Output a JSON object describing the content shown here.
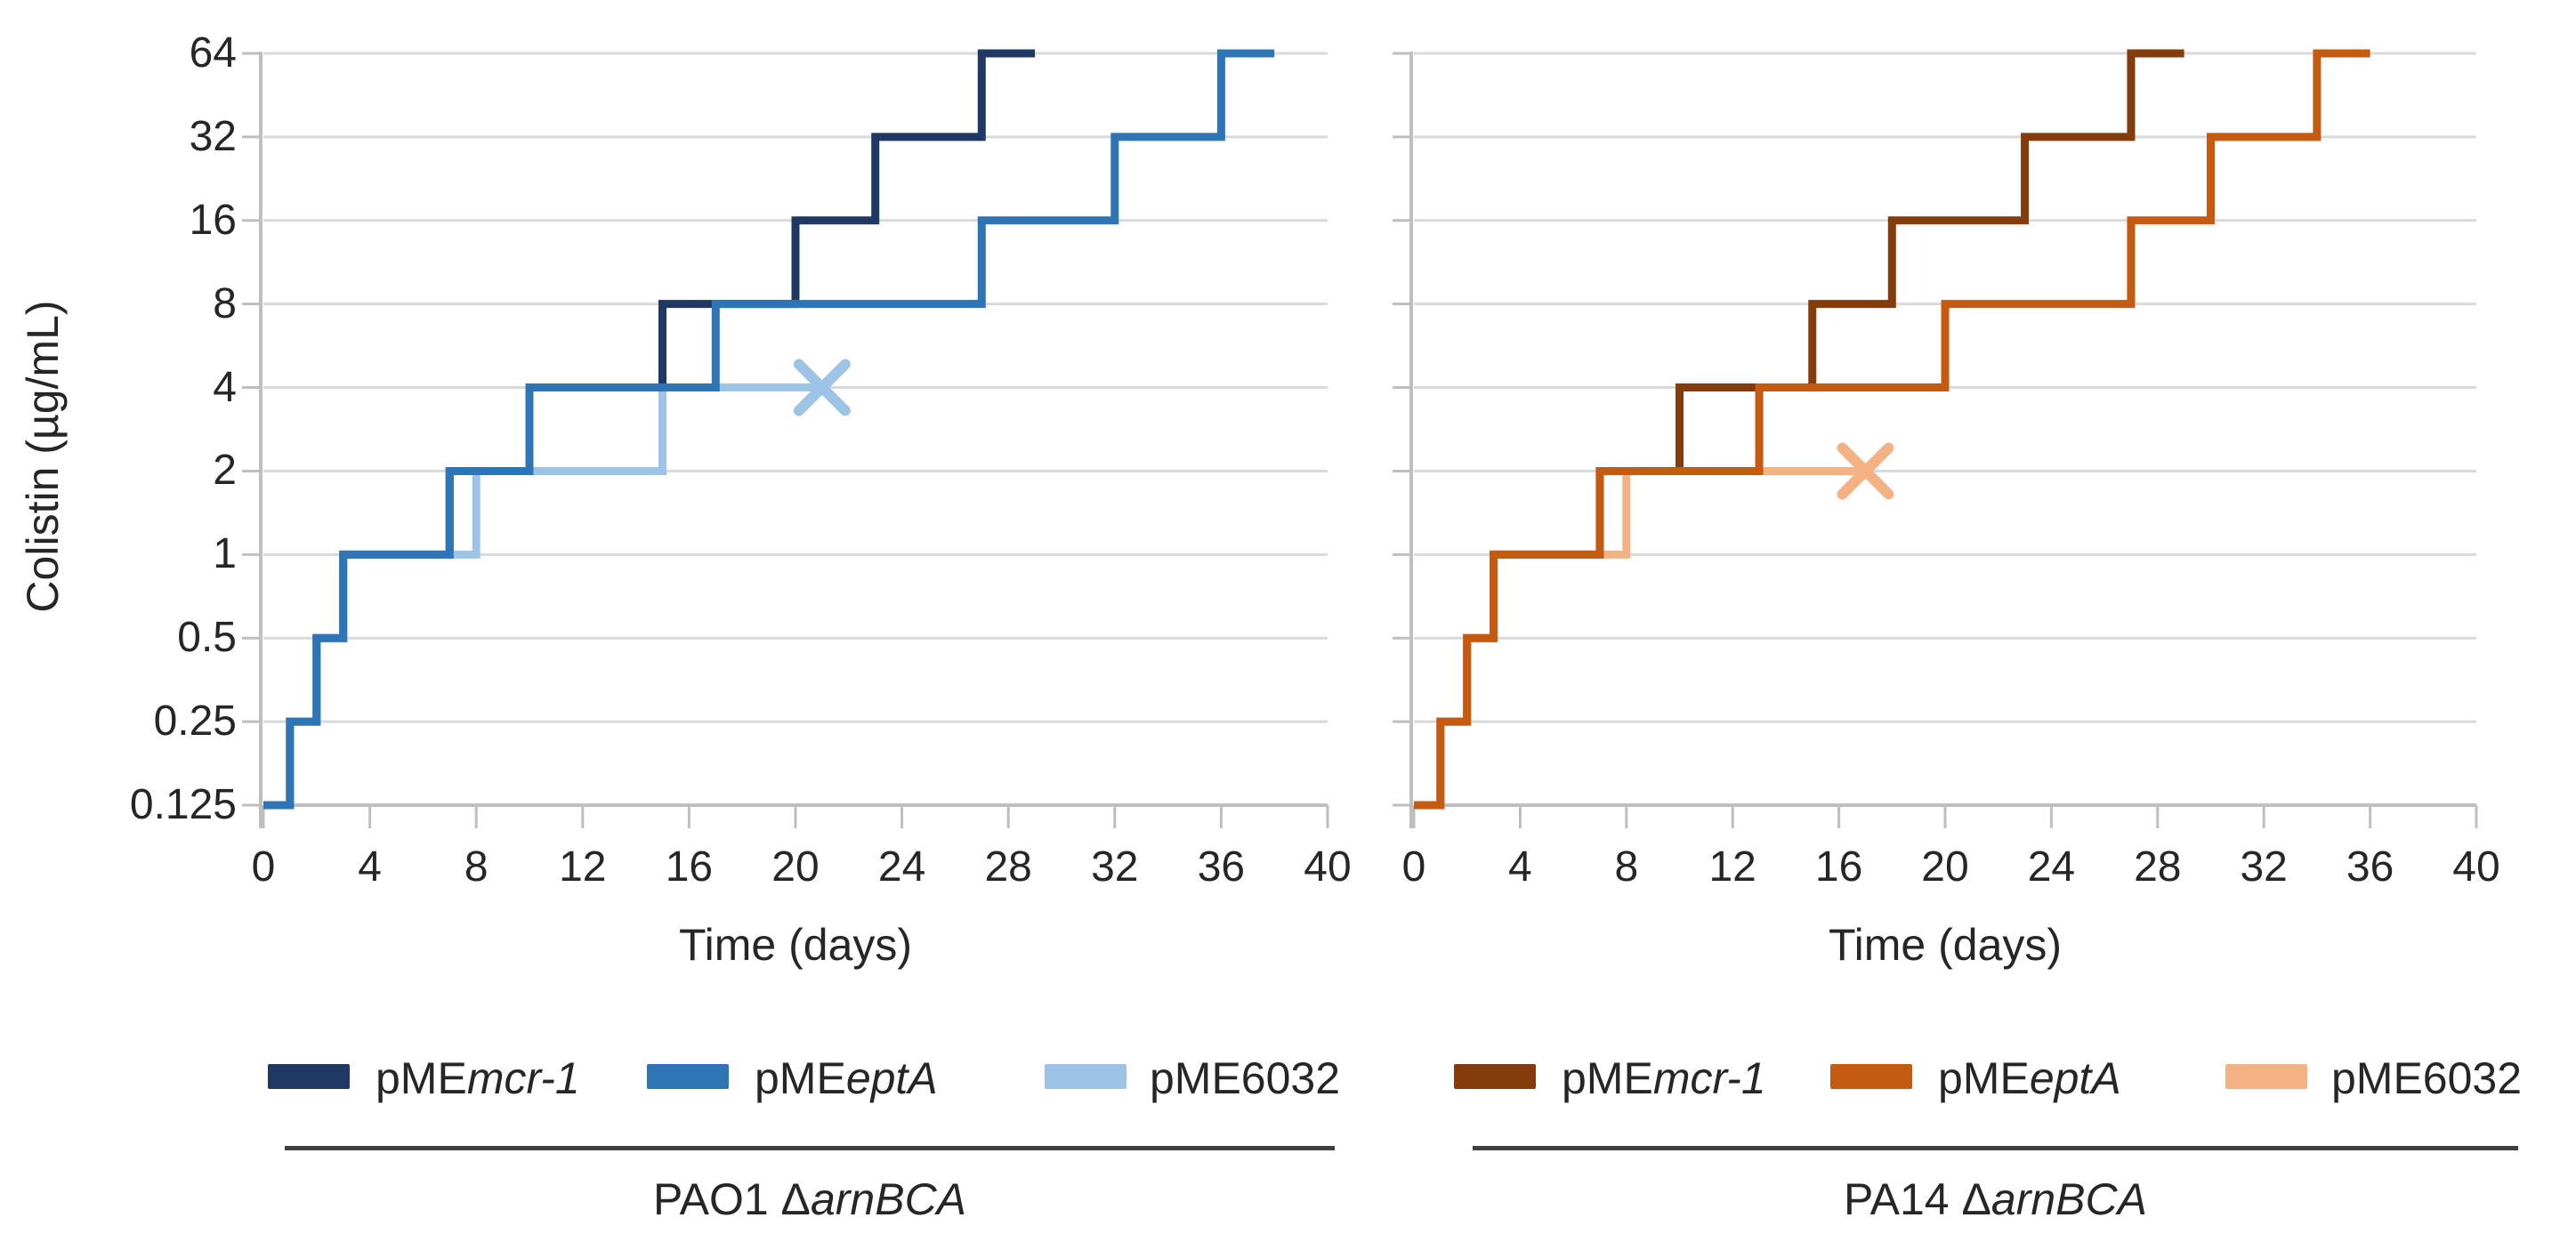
{
  "figure": {
    "y_axis_title": "Colistin (µg/mL)",
    "x_axis_title": "Time (days)",
    "grid_color": "#D9D9D9",
    "axis_color": "#BFBFBF",
    "text_color": "#262626",
    "underline_color": "#404040"
  },
  "legend": {
    "left": [
      {
        "prefix": "pME",
        "italic": "mcr-1",
        "color": "#1F3864"
      },
      {
        "prefix": "pME",
        "italic": "eptA",
        "color": "#2E75B6"
      },
      {
        "prefix": "pME6032",
        "italic": "",
        "color": "#9DC3E6"
      }
    ],
    "right": [
      {
        "prefix": "pME",
        "italic": "mcr-1",
        "color": "#843C0C"
      },
      {
        "prefix": "pME",
        "italic": "eptA",
        "color": "#C55A11"
      },
      {
        "prefix": "pME6032",
        "italic": "",
        "color": "#F4B183"
      }
    ]
  },
  "groups": {
    "left": {
      "prefix": "PAO1 Δ",
      "italic": "arnBCA"
    },
    "right": {
      "prefix": "PA14 Δ",
      "italic": "arnBCA"
    }
  },
  "chart_data": [
    {
      "type": "line",
      "subtype": "step",
      "title": "PAO1 ΔarnBCA",
      "xlabel": "Time (days)",
      "ylabel": "Colistin (µg/mL)",
      "x_ticks": [
        0,
        4,
        8,
        12,
        16,
        20,
        24,
        28,
        32,
        36,
        40
      ],
      "y_ticks": [
        64,
        32,
        16,
        8,
        4,
        2,
        1,
        0.5,
        0.25,
        0.125
      ],
      "xlim": [
        0,
        40
      ],
      "ylim": [
        0.125,
        64
      ],
      "y_scale": "log2",
      "grid": true,
      "legend_position": "bottom",
      "series": [
        {
          "name": "pMEmcr-1",
          "color": "#1F3864",
          "points": [
            [
              0,
              0.125
            ],
            [
              1,
              0.25
            ],
            [
              2,
              0.5
            ],
            [
              3,
              1
            ],
            [
              7,
              2
            ],
            [
              10,
              4
            ],
            [
              15,
              8
            ],
            [
              20,
              16
            ],
            [
              23,
              32
            ],
            [
              27,
              64
            ]
          ],
          "end_day": 29,
          "end_marker": ""
        },
        {
          "name": "pMEeptA",
          "color": "#2E75B6",
          "points": [
            [
              0,
              0.125
            ],
            [
              1,
              0.25
            ],
            [
              2,
              0.5
            ],
            [
              3,
              1
            ],
            [
              7,
              2
            ],
            [
              10,
              4
            ],
            [
              17,
              8
            ],
            [
              27,
              16
            ],
            [
              32,
              32
            ],
            [
              36,
              64
            ]
          ],
          "end_day": 38,
          "end_marker": ""
        },
        {
          "name": "pME6032",
          "color": "#9DC3E6",
          "points": [
            [
              0,
              0.125
            ],
            [
              1,
              0.25
            ],
            [
              2,
              0.5
            ],
            [
              3,
              1
            ],
            [
              8,
              2
            ],
            [
              15,
              4
            ]
          ],
          "end_day": 21,
          "end_marker": "x"
        }
      ]
    },
    {
      "type": "line",
      "subtype": "step",
      "title": "PA14 ΔarnBCA",
      "xlabel": "Time (days)",
      "ylabel": "Colistin (µg/mL)",
      "x_ticks": [
        0,
        4,
        8,
        12,
        16,
        20,
        24,
        28,
        32,
        36,
        40
      ],
      "y_ticks": [
        64,
        32,
        16,
        8,
        4,
        2,
        1,
        0.5,
        0.25,
        0.125
      ],
      "xlim": [
        0,
        40
      ],
      "ylim": [
        0.125,
        64
      ],
      "y_scale": "log2",
      "grid": true,
      "legend_position": "bottom",
      "series": [
        {
          "name": "pMEmcr-1",
          "color": "#843C0C",
          "points": [
            [
              0,
              0.125
            ],
            [
              1,
              0.25
            ],
            [
              2,
              0.5
            ],
            [
              3,
              1
            ],
            [
              7,
              2
            ],
            [
              10,
              4
            ],
            [
              15,
              8
            ],
            [
              18,
              16
            ],
            [
              23,
              32
            ],
            [
              27,
              64
            ]
          ],
          "end_day": 29,
          "end_marker": ""
        },
        {
          "name": "pMEeptA",
          "color": "#C55A11",
          "points": [
            [
              0,
              0.125
            ],
            [
              1,
              0.25
            ],
            [
              2,
              0.5
            ],
            [
              3,
              1
            ],
            [
              7,
              2
            ],
            [
              13,
              4
            ],
            [
              20,
              8
            ],
            [
              27,
              16
            ],
            [
              30,
              32
            ],
            [
              34,
              64
            ]
          ],
          "end_day": 36,
          "end_marker": ""
        },
        {
          "name": "pME6032",
          "color": "#F4B183",
          "points": [
            [
              0,
              0.125
            ],
            [
              1,
              0.25
            ],
            [
              2,
              0.5
            ],
            [
              3,
              1
            ],
            [
              8,
              2
            ]
          ],
          "end_day": 17,
          "end_marker": "x"
        }
      ]
    }
  ]
}
